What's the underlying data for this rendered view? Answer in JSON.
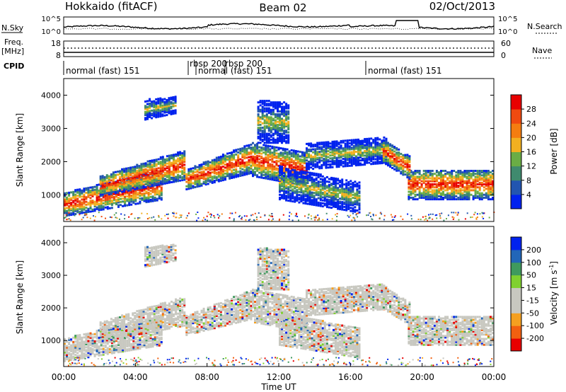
{
  "header": {
    "station": "Hokkaido (fitACF)",
    "beam": "Beam 02",
    "date": "02/Oct/2013"
  },
  "labels": {
    "nsky": "N.Sky",
    "nsearch": "N.Search",
    "freq_line1": "Freq.",
    "freq_line2": "[MHz]",
    "nave": "Nave",
    "cpid": "CPID",
    "slant_range": "Slant Range [km]",
    "time_ut": "Time UT",
    "power": "Power [dB]",
    "velocity_prefix": "Velocity [m s",
    "velocity_exp": "-1",
    "velocity_suffix": "]"
  },
  "colors": {
    "power_scale": [
      "#0022ee",
      "#2255b0",
      "#3f8a6e",
      "#6aad45",
      "#f2b020",
      "#f47d10",
      "#ef4a10",
      "#e80000"
    ],
    "velocity_scale": [
      "#e80000",
      "#f26010",
      "#f5a020",
      "#c8c8c0",
      "#c8c8c0",
      "#80d030",
      "#3f9a5e",
      "#2266b8",
      "#0022ee"
    ],
    "ground_scatter": "#c0c0b8"
  },
  "chart_data": [
    {
      "type": "line",
      "name": "noise",
      "left_ticks": [
        "10^5",
        "10^0"
      ],
      "right_ticks": [
        "10^5",
        "10^0"
      ]
    },
    {
      "type": "line",
      "name": "frequency-nave",
      "left_ticks": [
        "18",
        "8"
      ],
      "right_ticks": [
        "60",
        "0"
      ]
    },
    {
      "type": "table",
      "name": "cpid",
      "segments": [
        {
          "start": "00:00",
          "label": "normal (fast) 151"
        },
        {
          "start": "07:00",
          "label": "rbsp 200"
        },
        {
          "start": "07:30",
          "label": "normal (fast) 151"
        },
        {
          "start": "09:00",
          "label": "rbsp 200"
        },
        {
          "start": "17:00",
          "label": "normal (fast) 151"
        }
      ]
    },
    {
      "type": "heatmap",
      "name": "power",
      "ylabel": "Slant Range [km]",
      "ylim": [
        200,
        4500
      ],
      "yticks": [
        1000,
        2000,
        3000,
        4000
      ],
      "colorbar_label": "Power [dB]",
      "colorbar_ticks": [
        4,
        8,
        12,
        16,
        20,
        24,
        28
      ],
      "colorbar_range": [
        0,
        32
      ]
    },
    {
      "type": "heatmap",
      "name": "velocity",
      "ylabel": "Slant Range [km]",
      "ylim": [
        200,
        4500
      ],
      "yticks": [
        1000,
        2000,
        3000,
        4000
      ],
      "xlabel": "Time UT",
      "xticks": [
        "00:00",
        "04:00",
        "08:00",
        "12:00",
        "16:00",
        "20:00",
        "00:00"
      ],
      "colorbar_label": "Velocity [m s-1]",
      "colorbar_ticks": [
        -200,
        -100,
        -50,
        -15,
        15,
        50,
        100,
        200
      ]
    }
  ]
}
